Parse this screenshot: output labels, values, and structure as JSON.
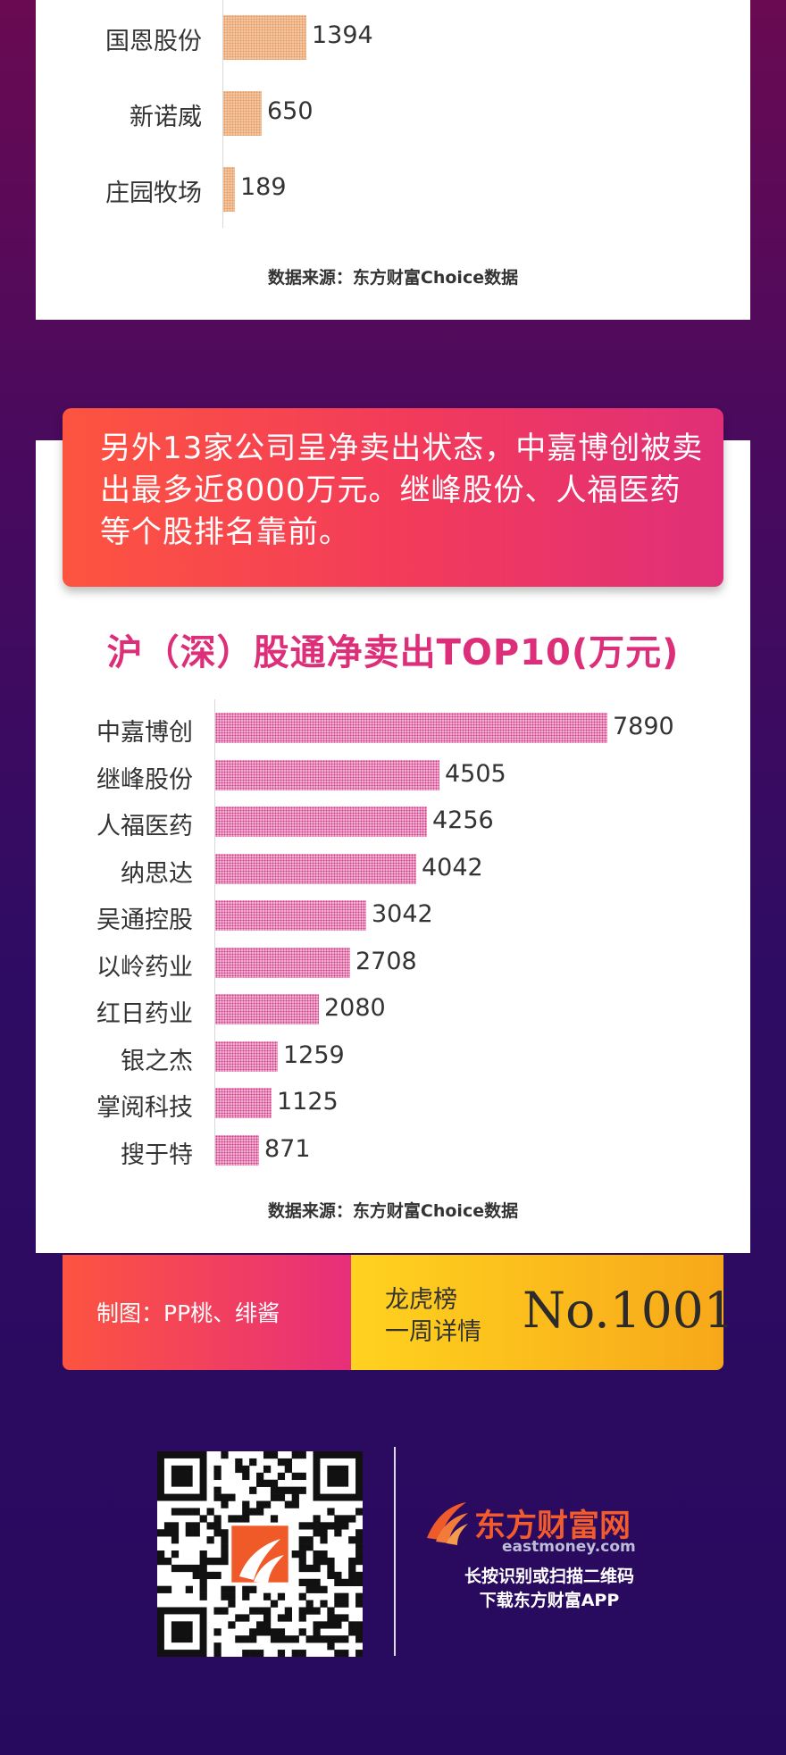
{
  "chart_data": [
    {
      "type": "bar",
      "orientation": "horizontal",
      "categories": [
        "国恩股份",
        "新诺威",
        "庄园牧场"
      ],
      "values": [
        1394,
        650,
        189
      ],
      "source": "数据来源：东方财富Choice数据",
      "colors": {
        "bar": "#f3b88c"
      }
    },
    {
      "type": "bar",
      "orientation": "horizontal",
      "title": "沪（深）股通净卖出TOP10(万元)",
      "categories": [
        "中嘉博创",
        "继峰股份",
        "人福医药",
        "纳思达",
        "吴通控股",
        "以岭药业",
        "红日药业",
        "银之杰",
        "掌阅科技",
        "搜于特"
      ],
      "values": [
        7890,
        4505,
        4256,
        4042,
        3042,
        2708,
        2080,
        1259,
        1125,
        871
      ],
      "source": "数据来源：东方财富Choice数据",
      "colors": {
        "bar": "#e97fb5"
      }
    }
  ],
  "banner": {
    "text": "另外13家公司呈净卖出状态，中嘉博创被卖出最多近8000万元。继峰股份、人福医药等个股排名靠前。"
  },
  "credit": {
    "label": "制图：PP桃、绯酱",
    "series_line1": "龙虎榜",
    "series_line2": "一周详情",
    "number": "No.1001"
  },
  "brand": {
    "name": "东方财富网",
    "domain": "eastmoney.com",
    "line1": "长按识别或扫描二维码",
    "line2": "下载东方财富APP",
    "qr_icon": "qr-code-icon",
    "logo_icon": "eastmoney-logo-icon"
  },
  "colors": {
    "title": "#dd2f79",
    "banner": "#f23a5c",
    "credit_left": "#e72f7a",
    "credit_right": "#ffd21f",
    "brand": "#f25b2c"
  }
}
